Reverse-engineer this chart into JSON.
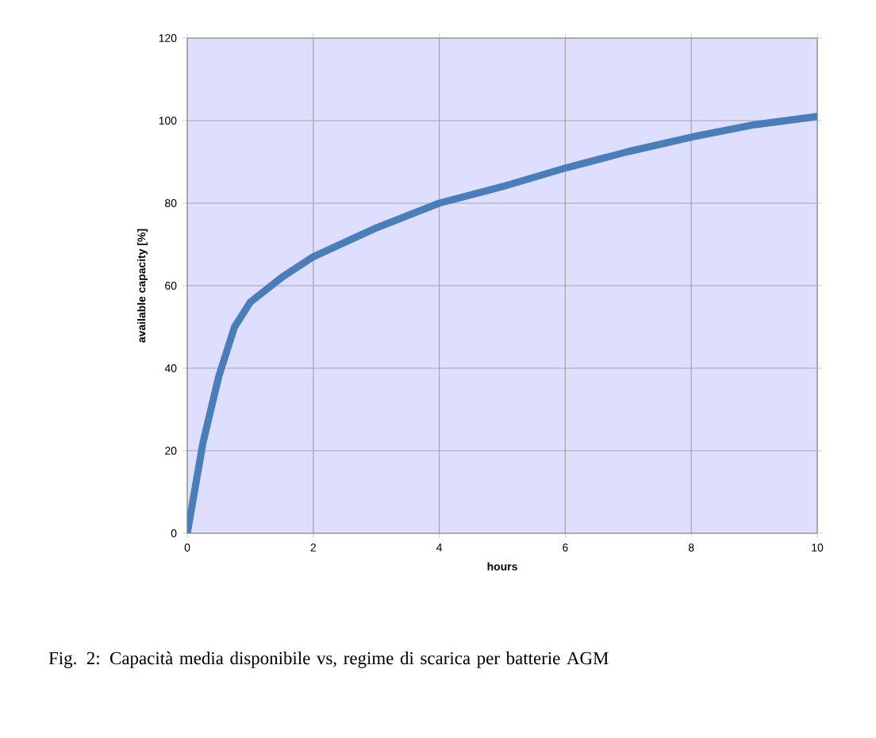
{
  "chart_data": {
    "type": "line",
    "xlabel": "hours",
    "ylabel": "available capacity [%]",
    "x": [
      0,
      0.25,
      0.5,
      0.75,
      1,
      1.5,
      2,
      3,
      4,
      5,
      6,
      7,
      8,
      9,
      10
    ],
    "series": [
      {
        "color": "#4a7ebb",
        "values": [
          0,
          22,
          38,
          50,
          56,
          62,
          67,
          74,
          80,
          84,
          88.5,
          92.5,
          96,
          99,
          101
        ]
      }
    ],
    "xlim": [
      0,
      10
    ],
    "ylim": [
      0,
      120
    ],
    "xticks": [
      0,
      2,
      4,
      6,
      8,
      10
    ],
    "yticks": [
      0,
      20,
      40,
      60,
      80,
      100,
      120
    ],
    "grid": true,
    "annotations": [
      "Fig. 2: Capacità media disponibile vs, regime di scarica per batterie AGM"
    ]
  }
}
